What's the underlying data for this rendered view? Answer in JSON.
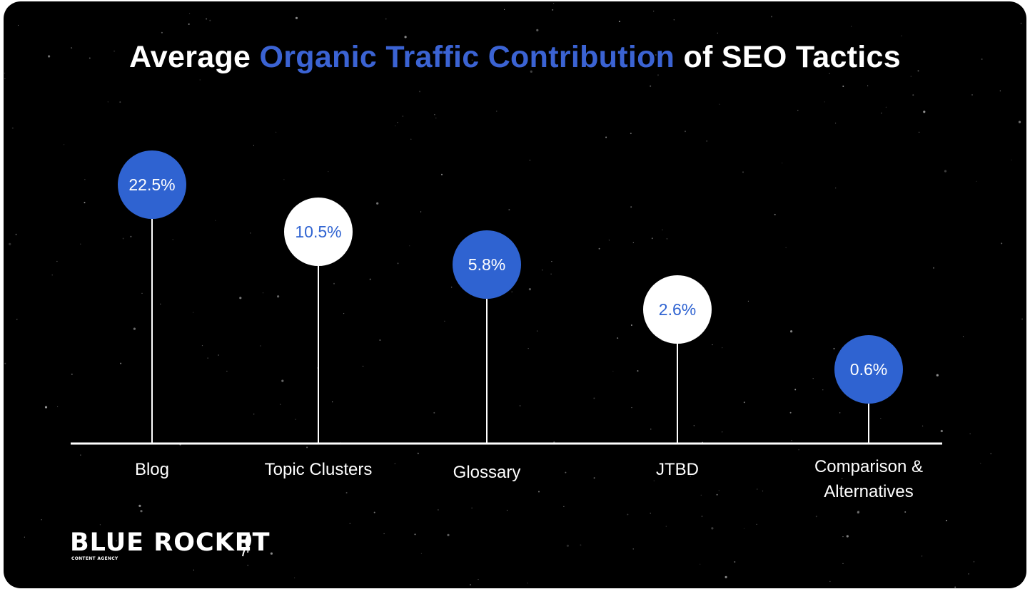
{
  "title": {
    "prefix": "Average ",
    "highlight": "Organic Traffic Contribution",
    "suffix": " of SEO Tactics"
  },
  "chart_data": {
    "type": "lollipop",
    "title": "Average Organic Traffic Contribution of SEO Tactics",
    "xlabel": "",
    "ylabel": "",
    "unit": "%",
    "categories": [
      "Blog",
      "Topic Clusters",
      "Glossary",
      "JTBD",
      "Comparison & Alternatives"
    ],
    "category_lines": [
      [
        "Blog"
      ],
      [
        "Topic Clusters"
      ],
      [
        "Glossary"
      ],
      [
        "JTBD"
      ],
      [
        "Comparison &",
        "Alternatives"
      ]
    ],
    "values": [
      22.5,
      10.5,
      5.8,
      2.6,
      0.6
    ],
    "value_labels": [
      "22.5%",
      "10.5%",
      "5.8%",
      "2.6%",
      "0.6%"
    ],
    "marker_styles": [
      "blue",
      "white",
      "blue",
      "white",
      "blue"
    ],
    "colors": {
      "background": "#000000",
      "accent": "#3b63d3",
      "white": "#ffffff",
      "blue_marker": "#2f63d1",
      "blue_text": "#2f63d1"
    },
    "grid": false,
    "legend": "none"
  },
  "logo": {
    "name": "BLUE ROCKET",
    "tagline": "CONTENT AGENCY",
    "icon": "rocket-icon"
  }
}
